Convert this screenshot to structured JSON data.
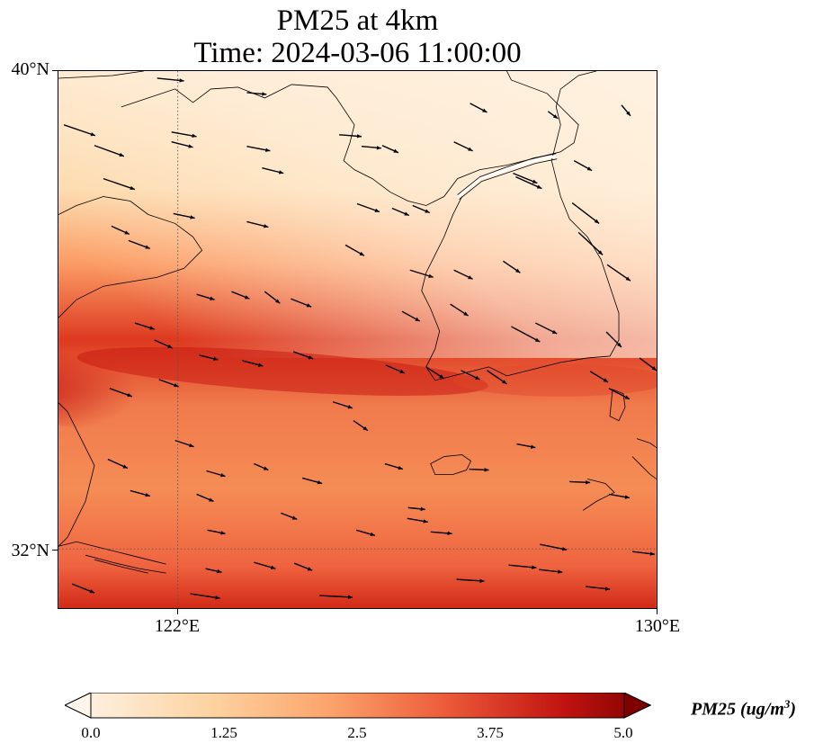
{
  "title": {
    "line1": "PM25 at 4km",
    "line2": "Time: 2024-03-06 11:00:00"
  },
  "map": {
    "lat_labels": [
      "40°N",
      "32°N"
    ],
    "lon_labels": [
      "122°E",
      "130°E"
    ],
    "lat_range": [
      31,
      40
    ],
    "lon_range": [
      120,
      130
    ],
    "gridlines": "dotted at 122°E and 32°N",
    "field": "PM25",
    "field_desc": "PM2.5 concentration shaded; band of high values near 34°N across the Yellow Sea to the Korean south coast",
    "wind_vectors": "westerly / west-northwesterly arrows across the domain",
    "colors": {
      "low": "#fff5eb",
      "mid": "#fdae6b",
      "high": "#d7301f",
      "max": "#7f0000",
      "coast": "#000000",
      "arrow": "#000000"
    }
  },
  "colorbar": {
    "label": "PM25 (ug/m",
    "label_sup": "3",
    "label_end": ")",
    "ticks": [
      "0.0",
      "1.25",
      "2.5",
      "3.75",
      "5.0"
    ],
    "range": [
      0,
      5
    ],
    "colormap": "OrRd",
    "extend": "both"
  }
}
